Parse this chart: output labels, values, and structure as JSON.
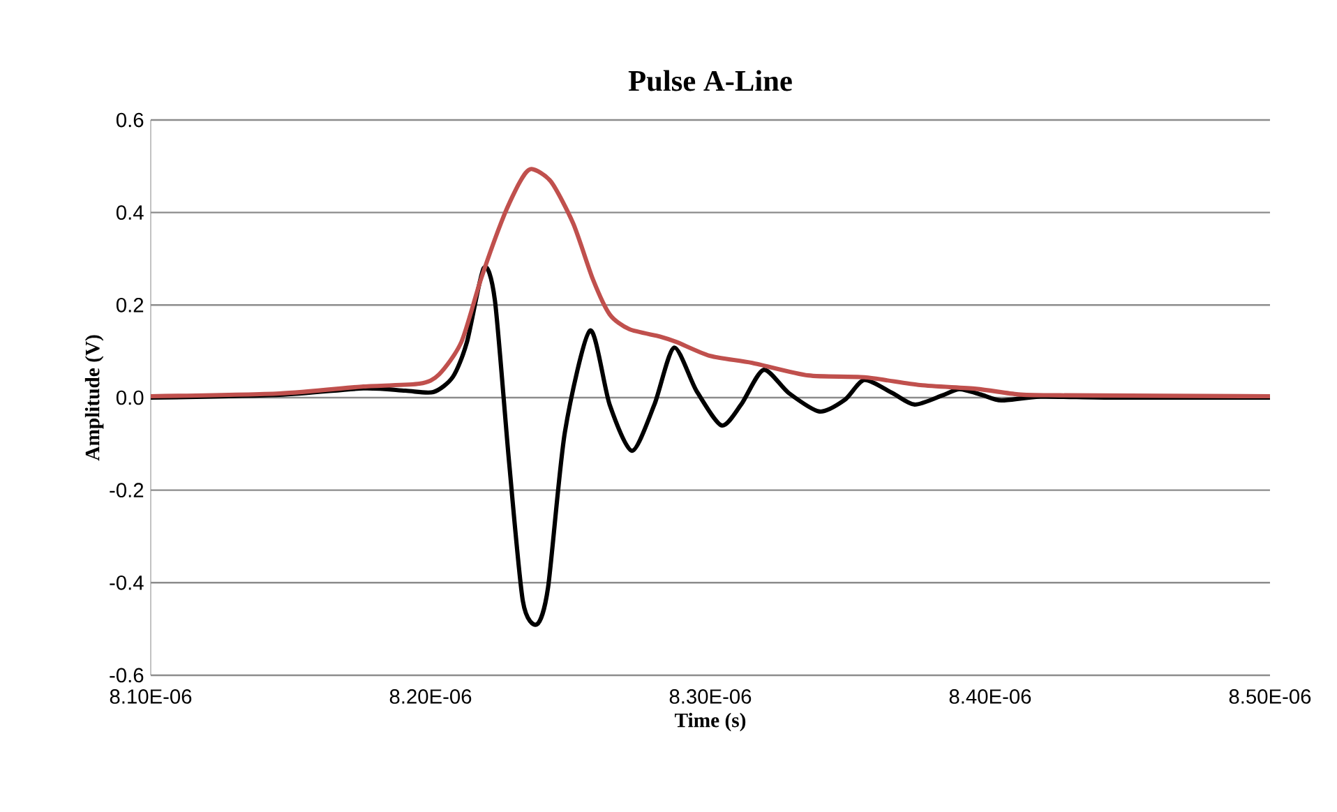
{
  "chart_data": {
    "type": "line",
    "title": "Pulse A-Line",
    "xlabel": "Time (s)",
    "ylabel": "Amplitude (V)",
    "xlim": [
      8.1e-06,
      8.5e-06
    ],
    "ylim": [
      -0.6,
      0.6
    ],
    "xticks": [
      {
        "value": 8.1e-06,
        "label": "8.10E-06"
      },
      {
        "value": 8.2e-06,
        "label": "8.20E-06"
      },
      {
        "value": 8.3e-06,
        "label": "8.30E-06"
      },
      {
        "value": 8.4e-06,
        "label": "8.40E-06"
      },
      {
        "value": 8.5e-06,
        "label": "8.50E-06"
      }
    ],
    "yticks": [
      -0.6,
      -0.4,
      -0.2,
      {
        "value": 0,
        "label": "0.0"
      },
      0.2,
      0.4,
      0.6
    ],
    "grid": "y",
    "marker": "none",
    "line_style": "solid",
    "series": [
      {
        "color": "#000000",
        "x": [
          8.1e-06,
          8.146e-06,
          8.176e-06,
          8.191e-06,
          8.201e-06,
          8.208e-06,
          8.213e-06,
          8.219e-06,
          8.223e-06,
          8.228e-06,
          8.233e-06,
          8.238e-06,
          8.242e-06,
          8.248e-06,
          8.257e-06,
          8.264e-06,
          8.272e-06,
          8.28e-06,
          8.287e-06,
          8.295e-06,
          8.304e-06,
          8.311e-06,
          8.319e-06,
          8.328e-06,
          8.339e-06,
          8.348e-06,
          8.355e-06,
          8.365e-06,
          8.373e-06,
          8.383e-06,
          8.389e-06,
          8.397e-06,
          8.404e-06,
          8.418e-06,
          8.445e-06,
          8.5e-06
        ],
        "values": [
          0,
          0.006,
          0.02,
          0.015,
          0.012,
          0.045,
          0.12,
          0.28,
          0.21,
          -0.135,
          -0.44,
          -0.49,
          -0.41,
          -0.075,
          0.145,
          -0.015,
          -0.115,
          -0.015,
          0.108,
          0.015,
          -0.06,
          -0.015,
          0.06,
          0.01,
          -0.03,
          -0.005,
          0.038,
          0.01,
          -0.015,
          0.005,
          0.018,
          0.006,
          -0.006,
          0.002,
          0,
          0
        ]
      },
      {
        "color": "#c0504d",
        "x": [
          8.1e-06,
          8.146e-06,
          8.176e-06,
          8.196e-06,
          8.203e-06,
          8.211e-06,
          8.218e-06,
          8.226e-06,
          8.232e-06,
          8.236e-06,
          8.243e-06,
          8.251e-06,
          8.258e-06,
          8.264e-06,
          8.271e-06,
          8.282e-06,
          8.288e-06,
          8.3e-06,
          8.315e-06,
          8.335e-06,
          8.355e-06,
          8.375e-06,
          8.395e-06,
          8.41e-06,
          8.425e-06,
          8.5e-06
        ],
        "values": [
          0.003,
          0.009,
          0.024,
          0.03,
          0.05,
          0.12,
          0.256,
          0.39,
          0.467,
          0.494,
          0.467,
          0.376,
          0.256,
          0.18,
          0.148,
          0.132,
          0.12,
          0.09,
          0.075,
          0.048,
          0.044,
          0.027,
          0.019,
          0.007,
          0.005,
          0.003
        ]
      }
    ]
  }
}
